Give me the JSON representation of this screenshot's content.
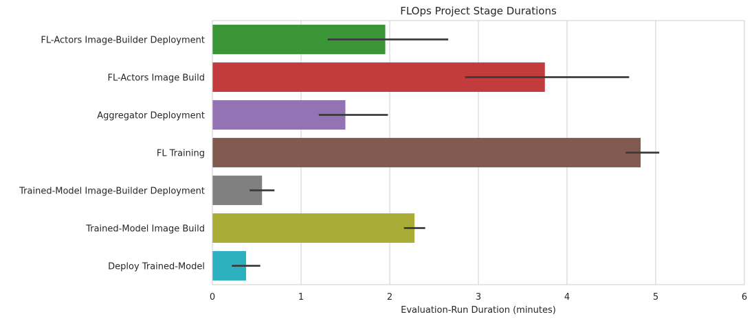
{
  "chart_data": {
    "type": "bar",
    "orientation": "horizontal",
    "title": "FLOps Project Stage Durations",
    "xlabel": "Evaluation-Run Duration (minutes)",
    "ylabel": "",
    "xlim": [
      0,
      6
    ],
    "xticks": [
      0,
      1,
      2,
      3,
      4,
      5,
      6
    ],
    "grid": true,
    "categories": [
      "FL-Actors Image-Builder Deployment",
      "FL-Actors Image Build",
      "Aggregator Deployment",
      "FL Training",
      "Trained-Model Image-Builder Deployment",
      "Trained-Model Image Build",
      "Deploy Trained-Model"
    ],
    "values": [
      1.95,
      3.75,
      1.5,
      4.83,
      0.56,
      2.28,
      0.38
    ],
    "error_intervals": [
      [
        1.3,
        2.66
      ],
      [
        2.85,
        4.7
      ],
      [
        1.2,
        1.98
      ],
      [
        4.66,
        5.04
      ],
      [
        0.42,
        0.7
      ],
      [
        2.16,
        2.4
      ],
      [
        0.22,
        0.54
      ]
    ],
    "colors": [
      "#3a9537",
      "#c23c3e",
      "#9373b3",
      "#835a50",
      "#808080",
      "#aaad35",
      "#2db0bf"
    ]
  }
}
